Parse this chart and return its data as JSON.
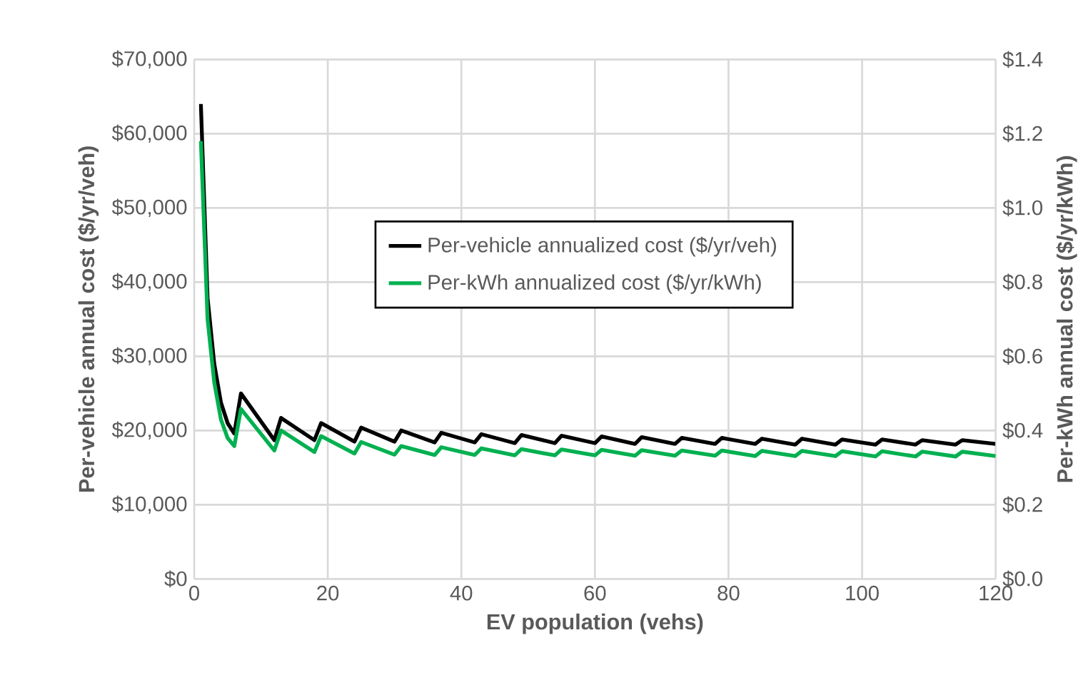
{
  "chart_data": {
    "type": "line",
    "xlabel": "EV population  (vehs)",
    "ylabel": "Per-vehicle annual cost ($/yr/veh)",
    "y2label": "Per-kWh annual cost ($/yr/kWh)",
    "x": [
      1,
      2,
      3,
      4,
      5,
      6,
      7,
      12,
      13,
      18,
      19,
      24,
      25,
      30,
      31,
      36,
      37,
      42,
      43,
      48,
      49,
      54,
      55,
      60,
      61,
      66,
      67,
      72,
      73,
      78,
      79,
      84,
      85,
      90,
      91,
      96,
      97,
      102,
      103,
      108,
      109,
      114,
      115,
      120
    ],
    "series": [
      {
        "name": "Per-vehicle annualized cost ($/yr/veh)",
        "color": "#000000",
        "values": [
          64000,
          37900,
          29000,
          23800,
          21000,
          19600,
          25000,
          18700,
          21700,
          18700,
          21000,
          18500,
          20400,
          18500,
          20000,
          18400,
          19700,
          18400,
          19500,
          18300,
          19400,
          18300,
          19300,
          18300,
          19200,
          18200,
          19100,
          18200,
          19000,
          18200,
          19000,
          18200,
          18900,
          18100,
          18900,
          18100,
          18800,
          18100,
          18800,
          18100,
          18700,
          18100,
          18700,
          18200
        ]
      },
      {
        "name": "Per-kWh annualized cost ($/yr/kWh)",
        "color": "#00b050",
        "axis": "y2",
        "values": [
          1.18,
          0.7,
          0.53,
          0.43,
          0.38,
          0.358,
          0.458,
          0.346,
          0.4,
          0.342,
          0.385,
          0.338,
          0.369,
          0.335,
          0.358,
          0.334,
          0.355,
          0.334,
          0.352,
          0.333,
          0.35,
          0.333,
          0.349,
          0.333,
          0.348,
          0.332,
          0.347,
          0.332,
          0.346,
          0.332,
          0.346,
          0.331,
          0.345,
          0.331,
          0.345,
          0.331,
          0.344,
          0.33,
          0.344,
          0.33,
          0.343,
          0.33,
          0.343,
          0.331
        ]
      }
    ],
    "xlim": [
      0,
      120
    ],
    "xticks": [
      0,
      20,
      40,
      60,
      80,
      100,
      120
    ],
    "ylim": [
      0,
      70000
    ],
    "yticks": [
      {
        "value": 0,
        "label": "$0"
      },
      {
        "value": 10000,
        "label": "$10,000"
      },
      {
        "value": 20000,
        "label": "$20,000"
      },
      {
        "value": 30000,
        "label": "$30,000"
      },
      {
        "value": 40000,
        "label": "$40,000"
      },
      {
        "value": 50000,
        "label": "$50,000"
      },
      {
        "value": 60000,
        "label": "$60,000"
      },
      {
        "value": 70000,
        "label": "$70,000"
      }
    ],
    "y2lim": [
      0,
      1.4
    ],
    "y2ticks": [
      {
        "value": 0,
        "label": "$0.0"
      },
      {
        "value": 0.2,
        "label": "$0.2"
      },
      {
        "value": 0.4,
        "label": "$0.4"
      },
      {
        "value": 0.6,
        "label": "$0.6"
      },
      {
        "value": 0.8,
        "label": "$0.8"
      },
      {
        "value": 1.0,
        "label": "$1.0"
      },
      {
        "value": 1.2,
        "label": "$1.2"
      },
      {
        "value": 1.4,
        "label": "$1.4"
      }
    ],
    "grid": true,
    "legend": "right",
    "marker": "none",
    "line_style": "solid"
  }
}
